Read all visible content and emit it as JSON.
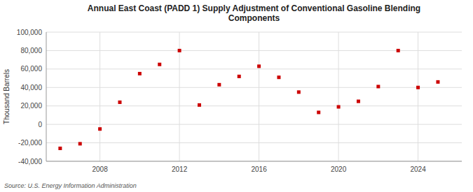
{
  "chart_data": {
    "type": "scatter",
    "title": "Annual East Coast (PADD 1) Supply Adjustment of Conventional Gasoline Blending\nComponents",
    "y_label": "Thousand Barrels",
    "source": "Source: U.S. Energy Information Administration",
    "x": [
      2006,
      2007,
      2008,
      2009,
      2010,
      2011,
      2012,
      2013,
      2014,
      2015,
      2016,
      2017,
      2018,
      2019,
      2020,
      2021,
      2022,
      2023,
      2024,
      2025
    ],
    "values": [
      -26000,
      -21000,
      -5000,
      24000,
      55000,
      65000,
      80000,
      21000,
      43000,
      52000,
      63000,
      51000,
      35000,
      13000,
      19000,
      25000,
      41000,
      80000,
      40000,
      46000
    ],
    "color": "#cc0000",
    "marker": "square",
    "xlim": [
      2005.3,
      2026.2
    ],
    "xticks": [
      2008,
      2012,
      2016,
      2020,
      2024
    ],
    "ylim": [
      -40000,
      100000
    ],
    "yticks": [
      {
        "value": -40000,
        "label": "-40,000"
      },
      {
        "value": -20000,
        "label": "-20,000"
      },
      0,
      {
        "value": 20000,
        "label": "20,000"
      },
      {
        "value": 40000,
        "label": "40,000"
      },
      {
        "value": 60000,
        "label": "60,000"
      },
      {
        "value": 80000,
        "label": "80,000"
      },
      {
        "value": 100000,
        "label": "100,000"
      }
    ],
    "grid": true
  }
}
